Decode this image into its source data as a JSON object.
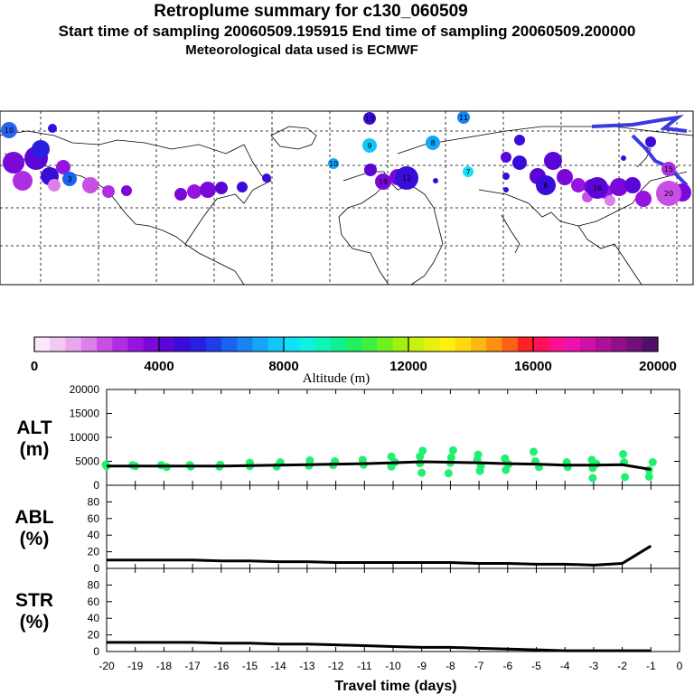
{
  "header": {
    "title": "Retroplume summary for c130_060509",
    "sampling": "Start time of sampling 20060509.195915     End time of sampling 20060509.200000",
    "met": "Meteorological data used is ECMWF"
  },
  "colorbar": {
    "label": "Altitude (m)",
    "ticks": [
      "0",
      "4000",
      "8000",
      "12000",
      "16000",
      "20000"
    ],
    "colors": [
      "#fbe6fb",
      "#f3c9f3",
      "#eaa6ee",
      "#de80ea",
      "#c94ee6",
      "#b02ee2",
      "#9514e0",
      "#7a08d8",
      "#5a06d6",
      "#3a0cd8",
      "#2a1ee0",
      "#1f3ee8",
      "#1a62f0",
      "#1784f4",
      "#14a6f8",
      "#12c6fa",
      "#10e0f8",
      "#10f0e0",
      "#10f4b8",
      "#10f090",
      "#20f060",
      "#40f040",
      "#70f020",
      "#a0f010",
      "#c8f010",
      "#e8f010",
      "#fff010",
      "#ffd810",
      "#ffb810",
      "#ff9010",
      "#ff6018",
      "#ff2028",
      "#ff1058",
      "#ff1090",
      "#f010b0",
      "#d010a8",
      "#b01098",
      "#901088",
      "#701078",
      "#501068"
    ]
  },
  "map_markers": [
    {
      "label": "10",
      "color": "#2a62f0"
    },
    {
      "label": "13",
      "color": "#3a0cd8"
    },
    {
      "label": "11",
      "color": "#1784f4"
    },
    {
      "label": "9",
      "color": "#12c6fa"
    },
    {
      "label": "8",
      "color": "#14a6f8"
    },
    {
      "label": "10",
      "color": "#14a6f8"
    },
    {
      "label": "7",
      "color": "#10e0f8"
    },
    {
      "label": "12",
      "color": "#3a0cd8"
    },
    {
      "label": "19",
      "color": "#7a08d8"
    },
    {
      "label": "16",
      "color": "#5a06d6"
    },
    {
      "label": "6",
      "color": "#3a0cd8"
    },
    {
      "label": "15",
      "color": "#b02ee2"
    },
    {
      "label": "20",
      "color": "#c94ee6"
    },
    {
      "label": "3",
      "color": "#1a62f0"
    }
  ],
  "chart_data": [
    {
      "type": "scatter",
      "panel": "ALT",
      "ylabel": "ALT\n(m)",
      "ylabel_line1": "ALT",
      "ylabel_line2": "(m)",
      "ylim": [
        0,
        20000
      ],
      "yticks": [
        "0",
        "5000",
        "10000",
        "15000",
        "20000"
      ],
      "x": [
        -20,
        -19,
        -18,
        -17,
        -16,
        -15,
        -14,
        -13,
        -12,
        -11,
        -10,
        -9,
        -8,
        -7,
        -6,
        -5,
        -4,
        -3,
        -2,
        -1
      ],
      "median_line": [
        4000,
        4000,
        4000,
        4000,
        4000,
        4100,
        4200,
        4300,
        4400,
        4500,
        4700,
        4900,
        4800,
        4700,
        4500,
        4400,
        4200,
        4200,
        4300,
        3300
      ],
      "scatter_points": [
        [
          -20,
          4000
        ],
        [
          -20,
          4300
        ],
        [
          -19,
          4000
        ],
        [
          -19,
          4200
        ],
        [
          -18,
          3800
        ],
        [
          -18,
          4200
        ],
        [
          -17,
          3900
        ],
        [
          -17,
          4200
        ],
        [
          -16,
          3900
        ],
        [
          -16,
          4300
        ],
        [
          -15,
          4000
        ],
        [
          -15,
          4700
        ],
        [
          -14,
          3900
        ],
        [
          -14,
          4800
        ],
        [
          -13,
          4100
        ],
        [
          -13,
          5200
        ],
        [
          -12,
          4200
        ],
        [
          -12,
          5000
        ],
        [
          -11,
          4300
        ],
        [
          -11,
          5300
        ],
        [
          -10,
          3900
        ],
        [
          -10,
          4800
        ],
        [
          -10,
          6000
        ],
        [
          -9,
          2600
        ],
        [
          -9,
          4600
        ],
        [
          -9,
          6000
        ],
        [
          -9,
          7200
        ],
        [
          -8,
          2500
        ],
        [
          -8,
          4700
        ],
        [
          -8,
          5800
        ],
        [
          -8,
          7300
        ],
        [
          -7,
          3000
        ],
        [
          -7,
          4100
        ],
        [
          -7,
          5300
        ],
        [
          -7,
          6400
        ],
        [
          -6,
          3200
        ],
        [
          -6,
          4400
        ],
        [
          -6,
          5600
        ],
        [
          -5,
          3800
        ],
        [
          -5,
          5000
        ],
        [
          -5,
          7000
        ],
        [
          -4,
          3800
        ],
        [
          -4,
          4800
        ],
        [
          -3,
          1500
        ],
        [
          -3,
          3600
        ],
        [
          -3,
          4500
        ],
        [
          -3,
          5300
        ],
        [
          -2,
          1700
        ],
        [
          -2,
          4800
        ],
        [
          -2,
          6500
        ],
        [
          -1,
          1800
        ],
        [
          -1,
          3200
        ],
        [
          -1,
          4800
        ]
      ],
      "xlim": [
        -20,
        0
      ]
    },
    {
      "type": "line",
      "panel": "ABL",
      "ylabel_line1": "ABL",
      "ylabel_line2": "(%)",
      "ylim": [
        0,
        100
      ],
      "yticks": [
        "0",
        "20",
        "40",
        "60",
        "80"
      ],
      "x": [
        -20,
        -19,
        -18,
        -17,
        -16,
        -15,
        -14,
        -13,
        -12,
        -11,
        -10,
        -9,
        -8,
        -7,
        -6,
        -5,
        -4,
        -3,
        -2,
        -1
      ],
      "values": [
        10,
        10,
        10,
        10,
        9,
        9,
        8,
        8,
        7,
        7,
        7,
        7,
        7,
        6,
        6,
        5,
        5,
        4,
        6,
        27
      ],
      "xlim": [
        -20,
        0
      ]
    },
    {
      "type": "line",
      "panel": "STR",
      "ylabel_line1": "STR",
      "ylabel_line2": "(%)",
      "ylim": [
        0,
        100
      ],
      "yticks": [
        "0",
        "20",
        "40",
        "60",
        "80"
      ],
      "x": [
        -20,
        -19,
        -18,
        -17,
        -16,
        -15,
        -14,
        -13,
        -12,
        -11,
        -10,
        -9,
        -8,
        -7,
        -6,
        -5,
        -4,
        -3,
        -2,
        -1
      ],
      "values": [
        11,
        11,
        11,
        11,
        10,
        10,
        9,
        9,
        8,
        7,
        6,
        5,
        5,
        4,
        3,
        2,
        1,
        1,
        1,
        1
      ],
      "xlim": [
        -20,
        0
      ],
      "xlabel": "Travel time (days)",
      "xticks": [
        "-20",
        "-19",
        "-18",
        "-17",
        "-16",
        "-15",
        "-14",
        "-13",
        "-12",
        "-11",
        "-10",
        "-9",
        "-8",
        "-7",
        "-6",
        "-5",
        "-4",
        "-3",
        "-2",
        "-1",
        "0"
      ]
    }
  ]
}
